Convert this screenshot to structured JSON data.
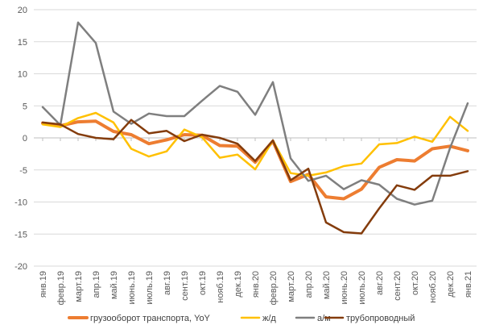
{
  "chart_data": {
    "type": "line",
    "categories": [
      "янв.19",
      "февр.19",
      "март.19",
      "апр.19",
      "май.19",
      "июнь.19",
      "июль.19",
      "авг.19",
      "сент.19",
      "окт.19",
      "нояб.19",
      "дек.19",
      "янв.20",
      "февр.20",
      "март.20",
      "апр.20",
      "май.20",
      "июнь.20",
      "июль.20",
      "авг.20",
      "сент.20",
      "окт.20",
      "нояб.20",
      "дек.20",
      "янв.21"
    ],
    "ylim": [
      -20,
      20
    ],
    "yticks": [
      -20,
      -15,
      -10,
      -5,
      0,
      5,
      10,
      15,
      20
    ],
    "grid": true,
    "legend_position": "bottom",
    "series": [
      {
        "name": "грузооборот транспорта, YoY",
        "color": "#ED7D31",
        "width": 4,
        "values": [
          2.3,
          1.9,
          2.5,
          2.6,
          1.0,
          0.5,
          -0.9,
          -0.3,
          0.5,
          0.4,
          -1.2,
          -1.3,
          -3.8,
          -0.5,
          -6.8,
          -5.7,
          -9.2,
          -9.5,
          -8.0,
          -4.6,
          -3.4,
          -3.6,
          -1.7,
          -1.3,
          -2.0
        ]
      },
      {
        "name": "ж/д",
        "color": "#FFC000",
        "width": 2.5,
        "values": [
          2.1,
          1.7,
          3.1,
          3.9,
          2.4,
          -1.7,
          -2.9,
          -2.1,
          1.3,
          0.1,
          -3.1,
          -2.6,
          -4.9,
          -0.4,
          -5.5,
          -5.9,
          -5.4,
          -4.4,
          -4.0,
          -1.0,
          -0.8,
          0.2,
          -0.6,
          3.3,
          1.1
        ]
      },
      {
        "name": "а/м",
        "color": "#7F7F7F",
        "width": 2.5,
        "values": [
          4.8,
          2.0,
          18.0,
          14.8,
          4.1,
          2.2,
          3.8,
          3.4,
          3.4,
          5.8,
          8.1,
          7.2,
          3.6,
          8.7,
          -3.2,
          -6.7,
          -5.9,
          -8.0,
          -6.6,
          -7.3,
          -9.5,
          -10.4,
          -9.8,
          -1.6,
          5.4
        ]
      },
      {
        "name": "трубопроводный",
        "color": "#843C0C",
        "width": 2.5,
        "values": [
          2.4,
          2.1,
          0.6,
          0.0,
          -0.2,
          2.8,
          0.7,
          1.1,
          -0.5,
          0.5,
          0.0,
          -0.9,
          -3.6,
          -0.4,
          -6.6,
          -4.8,
          -13.2,
          -14.7,
          -14.9,
          -11.0,
          -7.4,
          -8.1,
          -5.9,
          -5.9,
          -5.2
        ]
      }
    ]
  }
}
